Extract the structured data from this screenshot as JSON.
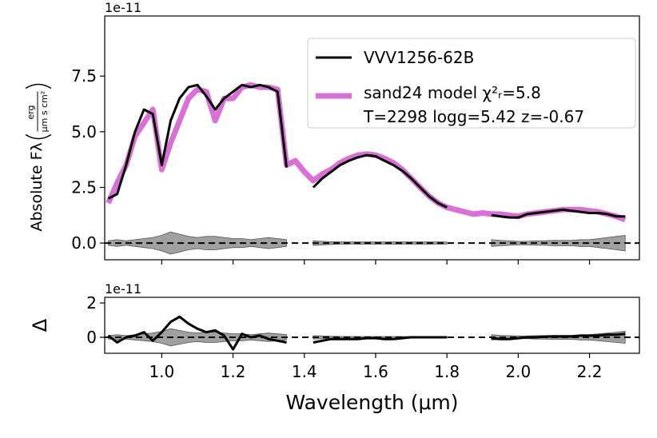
{
  "chart_data": [
    {
      "type": "line",
      "offset_text": "1e-11",
      "ylabel": "Absolute Fλ",
      "ylabel_units": {
        "numerator": "erg",
        "denominator": "μm s cm²"
      },
      "xlim": [
        0.84,
        2.34
      ],
      "ylim": [
        -0.75,
        10.2
      ],
      "xticks": [
        {
          "value": 1,
          "label": "1.0"
        },
        1.2,
        1.4,
        1.6,
        1.8,
        {
          "value": 2,
          "label": "2.0"
        },
        2.2
      ],
      "yticks": [
        {
          "value": 0,
          "label": "0.0"
        },
        2.5,
        {
          "value": 5,
          "label": "5.0"
        },
        7.5
      ],
      "hline": 0,
      "x": [
        0.85,
        0.875,
        0.9,
        0.925,
        0.95,
        0.975,
        1.0,
        1.025,
        1.05,
        1.075,
        1.1,
        1.125,
        1.15,
        1.175,
        1.2,
        1.225,
        1.25,
        1.275,
        1.3,
        1.325,
        1.35,
        1.375,
        1.4,
        1.425,
        1.45,
        1.475,
        1.5,
        1.525,
        1.55,
        1.575,
        1.6,
        1.625,
        1.65,
        1.675,
        1.7,
        1.725,
        1.75,
        1.775,
        1.8,
        1.825,
        1.85,
        1.875,
        1.9,
        1.925,
        1.95,
        1.975,
        2.0,
        2.025,
        2.05,
        2.075,
        2.1,
        2.125,
        2.15,
        2.175,
        2.2,
        2.225,
        2.25,
        2.275,
        2.3
      ],
      "series": [
        {
          "name": "VVV1256-62B",
          "color": "#000000",
          "values": [
            2.0,
            2.2,
            3.5,
            5.0,
            6.0,
            5.8,
            3.5,
            5.5,
            6.5,
            7.0,
            7.1,
            6.6,
            6.0,
            6.5,
            6.8,
            7.1,
            7.0,
            7.1,
            7.0,
            6.8,
            3.4,
            null,
            null,
            2.5,
            2.9,
            3.2,
            3.5,
            3.7,
            3.85,
            3.95,
            3.9,
            3.7,
            3.5,
            3.25,
            2.9,
            2.5,
            2.1,
            1.8,
            1.6,
            null,
            null,
            null,
            null,
            1.25,
            1.2,
            1.15,
            1.15,
            1.3,
            1.35,
            1.4,
            1.45,
            1.5,
            1.45,
            1.4,
            1.35,
            1.35,
            1.3,
            1.2,
            1.2
          ]
        },
        {
          "name": "sand24 model χ²ᵣ=5.8\nT=2298 logg=5.42 z=-0.67",
          "color": "#da70d6",
          "values": [
            1.8,
            2.7,
            3.5,
            4.8,
            5.4,
            6.0,
            3.3,
            4.5,
            5.5,
            6.5,
            6.9,
            6.8,
            5.5,
            6.5,
            6.5,
            7.0,
            7.1,
            7.0,
            7.0,
            6.9,
            3.5,
            3.7,
            3.2,
            2.8,
            3.1,
            3.3,
            3.6,
            3.8,
            3.95,
            4.0,
            3.95,
            3.8,
            3.6,
            3.3,
            2.9,
            2.5,
            2.1,
            1.8,
            1.6,
            1.5,
            1.4,
            1.3,
            1.35,
            1.3,
            1.3,
            1.25,
            1.2,
            1.3,
            1.35,
            1.4,
            1.45,
            1.5,
            1.5,
            1.5,
            1.45,
            1.4,
            1.3,
            1.2,
            1.05
          ]
        }
      ],
      "uncertainty": {
        "color": "#808080",
        "values": [
          0.1,
          0.15,
          0.1,
          0.15,
          0.2,
          0.25,
          0.35,
          0.5,
          0.4,
          0.3,
          0.25,
          0.3,
          0.3,
          0.25,
          0.2,
          0.2,
          0.15,
          0.2,
          0.25,
          0.2,
          0.15,
          null,
          null,
          0.1,
          0.08,
          0.06,
          0.05,
          0.05,
          0.05,
          0.05,
          0.05,
          0.05,
          0.05,
          0.05,
          0.05,
          0.05,
          0.05,
          0.05,
          0.05,
          null,
          null,
          null,
          null,
          0.15,
          0.12,
          0.1,
          0.08,
          0.08,
          0.1,
          0.1,
          0.12,
          0.12,
          0.12,
          0.15,
          0.15,
          0.2,
          0.25,
          0.3,
          0.35
        ]
      },
      "legend": "upper right"
    },
    {
      "type": "line",
      "offset_text": "1e-11",
      "ylabel": "Δ",
      "xlabel": "Wavelength (μm)",
      "xlim": [
        0.84,
        2.34
      ],
      "ylim": [
        -0.93,
        2.33
      ],
      "xticks": [
        {
          "value": 1,
          "label": "1.0"
        },
        1.2,
        1.4,
        1.6,
        1.8,
        {
          "value": 2,
          "label": "2.0"
        },
        2.2
      ],
      "yticks": [
        0,
        2
      ],
      "hline": 0,
      "x": [
        0.85,
        0.875,
        0.9,
        0.925,
        0.95,
        0.975,
        1.0,
        1.025,
        1.05,
        1.075,
        1.1,
        1.125,
        1.15,
        1.175,
        1.2,
        1.225,
        1.25,
        1.275,
        1.3,
        1.325,
        1.35,
        1.375,
        1.4,
        1.425,
        1.45,
        1.475,
        1.5,
        1.525,
        1.55,
        1.575,
        1.6,
        1.625,
        1.65,
        1.675,
        1.7,
        1.725,
        1.75,
        1.775,
        1.8,
        1.825,
        1.85,
        1.875,
        1.9,
        1.925,
        1.95,
        1.975,
        2.0,
        2.025,
        2.05,
        2.075,
        2.1,
        2.125,
        2.15,
        2.175,
        2.2,
        2.225,
        2.25,
        2.275,
        2.3
      ],
      "series": [
        {
          "name": "VVV1256-62B",
          "color": "#000000",
          "values": [
            0.1,
            -0.3,
            0,
            0.1,
            0.3,
            -0.2,
            0.3,
            0.9,
            1.2,
            0.8,
            0.5,
            0.3,
            0.4,
            0.1,
            -0.7,
            0.2,
            0,
            0.1,
            -0.1,
            -0.2,
            -0.3,
            null,
            null,
            -0.3,
            -0.2,
            -0.1,
            -0.1,
            -0.1,
            -0.1,
            -0.05,
            -0.05,
            -0.1,
            -0.1,
            -0.05,
            0,
            0,
            0,
            0,
            0,
            null,
            null,
            null,
            null,
            -0.05,
            -0.1,
            -0.1,
            -0.05,
            0,
            0,
            0.05,
            0.05,
            0.05,
            0.05,
            0.1,
            0.1,
            0.1,
            0.15,
            0.15,
            0.2
          ]
        }
      ],
      "uncertainty": {
        "color": "#808080",
        "values": [
          0.1,
          0.15,
          0.1,
          0.15,
          0.2,
          0.25,
          0.35,
          0.5,
          0.4,
          0.3,
          0.25,
          0.3,
          0.3,
          0.25,
          0.2,
          0.2,
          0.15,
          0.2,
          0.25,
          0.2,
          0.15,
          null,
          null,
          0.1,
          0.08,
          0.06,
          0.05,
          0.05,
          0.05,
          0.05,
          0.05,
          0.05,
          0.05,
          0.05,
          0.05,
          0.05,
          0.05,
          0.05,
          0.05,
          null,
          null,
          null,
          null,
          0.15,
          0.12,
          0.1,
          0.08,
          0.08,
          0.1,
          0.1,
          0.12,
          0.12,
          0.12,
          0.15,
          0.15,
          0.2,
          0.25,
          0.3,
          0.35
        ]
      }
    }
  ]
}
